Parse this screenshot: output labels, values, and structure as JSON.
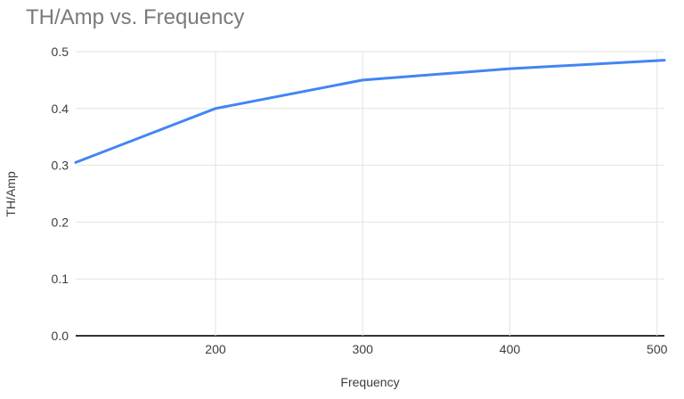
{
  "chart_data": {
    "type": "line",
    "title": "TH/Amp vs. Frequency",
    "xlabel": "Frequency",
    "ylabel": "TH/Amp",
    "x": [
      105,
      200,
      300,
      400,
      505
    ],
    "series": [
      {
        "name": "TH/Amp",
        "values": [
          0.305,
          0.4,
          0.45,
          0.47,
          0.485
        ]
      }
    ],
    "xlim": [
      105,
      505
    ],
    "ylim": [
      0,
      0.5
    ],
    "x_ticks": [
      200,
      300,
      400,
      500
    ],
    "x_tick_labels": [
      "200",
      "300",
      "400",
      "500"
    ],
    "y_ticks": [
      0,
      0.1,
      0.2,
      0.3,
      0.4,
      0.5
    ],
    "y_tick_labels": [
      "0.0",
      "0.1",
      "0.2",
      "0.3",
      "0.4",
      "0.5"
    ],
    "grid": true,
    "legend": "none",
    "colors": {
      "line": "#4285f4",
      "gridline": "#e3e3e3",
      "axis_line": "#333333",
      "tick_label": "#3c3c3c",
      "axis_title": "#3c3c3c",
      "title": "#7a7a7a",
      "background": "#ffffff"
    }
  }
}
